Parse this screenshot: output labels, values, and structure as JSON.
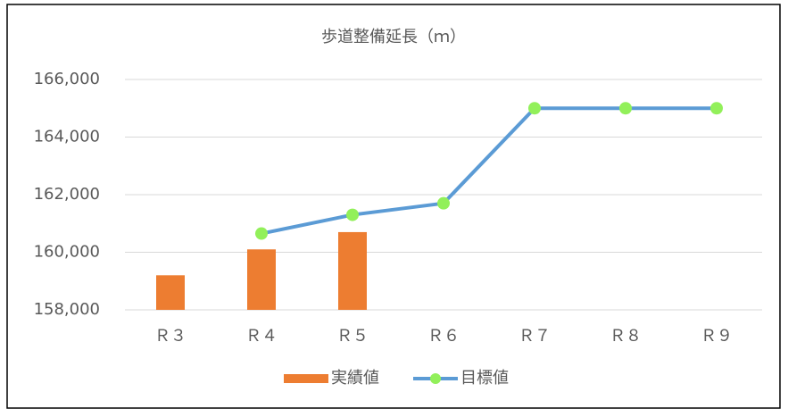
{
  "chart_data": {
    "type": "combo",
    "title": "歩道整備延長（ｍ）",
    "categories": [
      "Ｒ３",
      "Ｒ４",
      "Ｒ５",
      "Ｒ６",
      "Ｒ７",
      "Ｒ８",
      "Ｒ９"
    ],
    "series": [
      {
        "name": "実績値",
        "type": "bar",
        "color": "#ed7d31",
        "values": [
          159200,
          160100,
          160700,
          null,
          null,
          null,
          null
        ]
      },
      {
        "name": "目標値",
        "type": "line",
        "color": "#5b9bd5",
        "marker_color": "#92f05a",
        "values": [
          null,
          160650,
          161300,
          161700,
          165000,
          165000,
          165000
        ]
      }
    ],
    "ylim": [
      158000,
      166000
    ],
    "yticks": [
      {
        "value": 158000,
        "label": "158,000"
      },
      {
        "value": 160000,
        "label": "160,000"
      },
      {
        "value": 162000,
        "label": "162,000"
      },
      {
        "value": 164000,
        "label": "164,000"
      },
      {
        "value": 166000,
        "label": "166,000"
      }
    ],
    "grid": true,
    "legend": "bottom"
  }
}
